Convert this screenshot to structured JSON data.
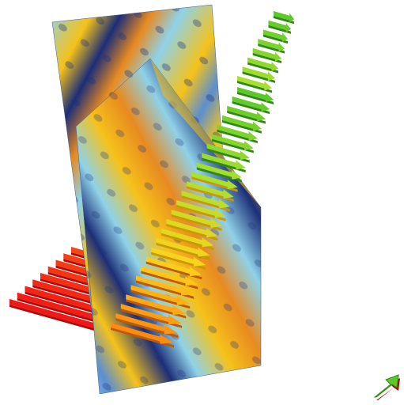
{
  "scene": {
    "background": "#ffffff",
    "palette": {
      "red": "#f01818",
      "red_dark": "#b00a0a",
      "orange": "#ff8a10",
      "orange_dark": "#c05a00",
      "yellow": "#ffd21a",
      "yellow_dark": "#c89a00",
      "green": "#5cc82a",
      "green_dark": "#2f8a14",
      "lime": "#a8e030",
      "slice_yellow": "#f5c21a",
      "slice_blue": "#5b8fd0",
      "slice_cyan": "#8fd2e8",
      "slice_navy": "#1c2e78",
      "slice_orange": "#e88a20"
    },
    "slices": [
      {
        "name": "back-slice-plane"
      },
      {
        "name": "front-slice-plane"
      }
    ],
    "vector_glyphs": {
      "kind": "arrow",
      "color_map": "red-to-green"
    },
    "orientation_widget": {
      "icon": "axis-orientation-arrow-icon"
    }
  }
}
